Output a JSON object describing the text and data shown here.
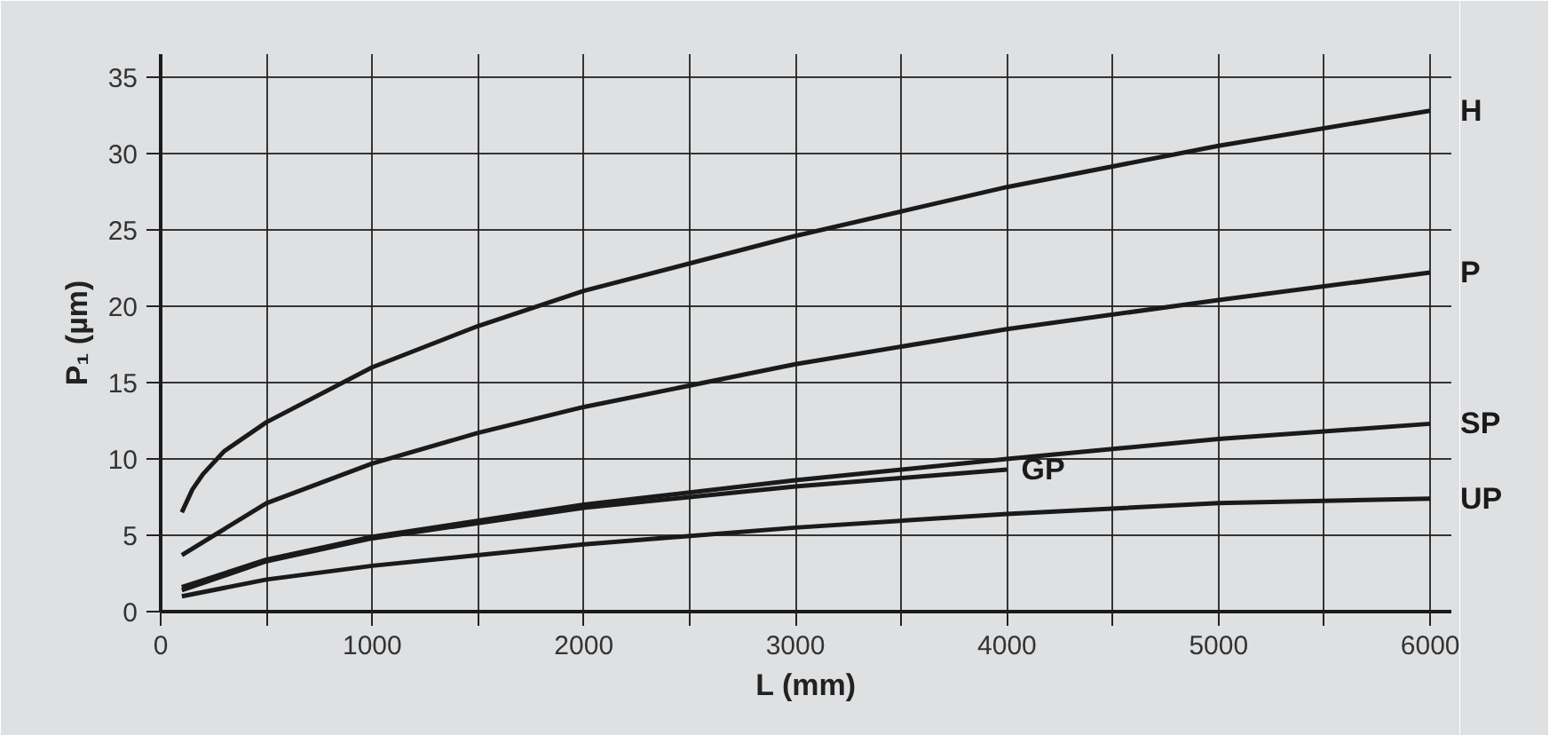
{
  "chart_data": {
    "type": "line",
    "xlabel": "L (mm)",
    "ylabel": "P₁ (µm)",
    "xlim": [
      0,
      6100
    ],
    "ylim": [
      0,
      36.5
    ],
    "xticks": [
      0,
      {
        "value": 500,
        "label": null
      },
      1000,
      {
        "value": 1500,
        "label": null
      },
      2000,
      {
        "value": 2500,
        "label": null
      },
      3000,
      {
        "value": 3500,
        "label": null
      },
      4000,
      {
        "value": 4500,
        "label": null
      },
      5000,
      {
        "value": 5500,
        "label": null
      },
      6000
    ],
    "yticks": [
      0,
      5,
      10,
      15,
      20,
      25,
      30,
      35
    ],
    "grid": true,
    "marker": "none",
    "line_style": "solid",
    "series": [
      {
        "name": "H",
        "color": "#1a1a1a",
        "x": [
          100,
          150,
          200,
          300,
          500,
          1000,
          1500,
          2000,
          3000,
          4000,
          5000,
          6000
        ],
        "values": [
          6.5,
          8.0,
          9.0,
          10.5,
          12.4,
          16,
          18.7,
          21,
          24.6,
          27.8,
          30.5,
          32.8
        ]
      },
      {
        "name": "P",
        "color": "#1a1a1a",
        "x": [
          100,
          500,
          1000,
          1500,
          2000,
          3000,
          4000,
          5000,
          6000
        ],
        "values": [
          3.7,
          7.1,
          9.7,
          11.7,
          13.4,
          16.2,
          18.5,
          20.4,
          22.2
        ]
      },
      {
        "name": "SP",
        "color": "#1a1a1a",
        "x": [
          100,
          500,
          1000,
          2000,
          3000,
          4000,
          5000,
          6000
        ],
        "values": [
          1.6,
          3.4,
          4.9,
          7.0,
          8.6,
          10.0,
          11.3,
          12.3
        ]
      },
      {
        "name": "GP",
        "color": "#1a1a1a",
        "x": [
          100,
          500,
          1000,
          2000,
          3000,
          4000
        ],
        "values": [
          1.4,
          3.3,
          4.8,
          6.8,
          8.2,
          9.3
        ]
      },
      {
        "name": "UP",
        "color": "#1a1a1a",
        "x": [
          100,
          500,
          1000,
          2000,
          3000,
          4000,
          5000,
          6000
        ],
        "values": [
          1.0,
          2.1,
          3.0,
          4.4,
          5.5,
          6.4,
          7.1,
          7.4
        ]
      }
    ]
  }
}
